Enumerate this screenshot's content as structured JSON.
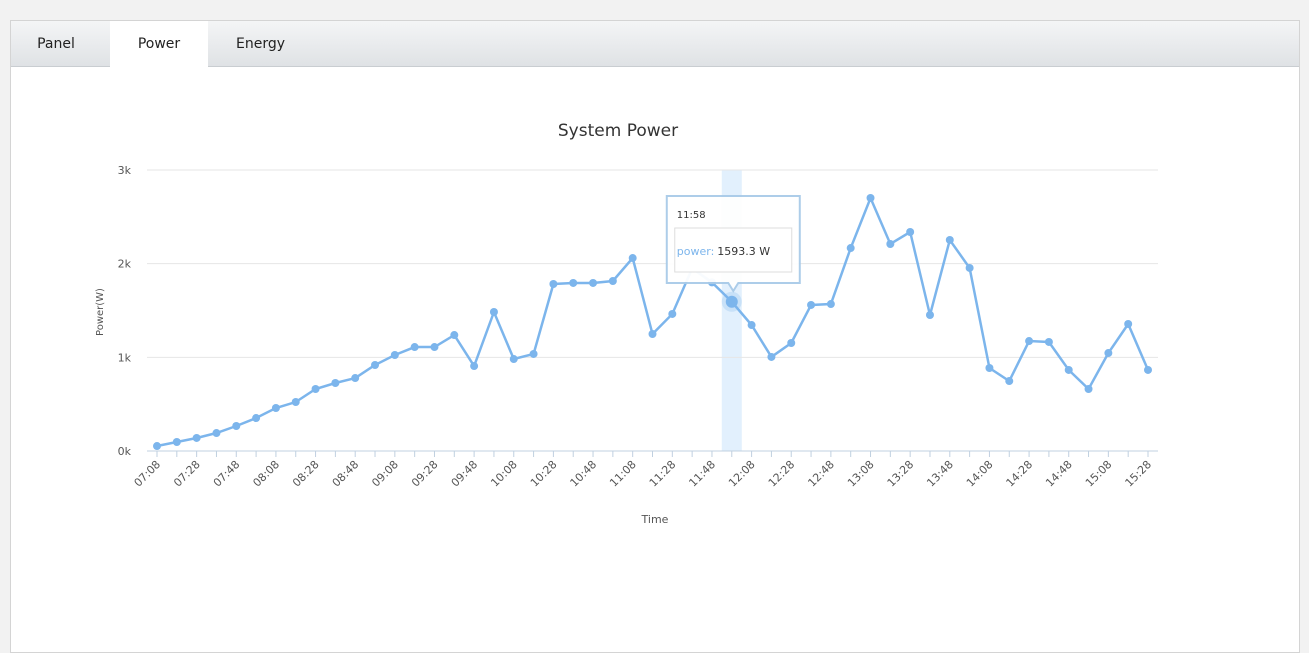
{
  "tabs": [
    "Panel",
    "Power",
    "Energy"
  ],
  "active_tab": 1,
  "chart_data": {
    "type": "line",
    "title": "System Power",
    "x_label": "Time",
    "y_label": "Power(W)",
    "categories": [
      "07:08",
      null,
      "07:28",
      null,
      "07:48",
      null,
      "08:08",
      null,
      "08:28",
      null,
      "08:48",
      null,
      "09:08",
      null,
      "09:28",
      null,
      "09:48",
      null,
      "10:08",
      null,
      "10:28",
      null,
      "10:48",
      null,
      "11:08",
      null,
      "11:28",
      null,
      "11:48",
      null,
      "12:08",
      null,
      "12:28",
      null,
      "12:48",
      null,
      "13:08",
      null,
      "13:28",
      null,
      "13:48",
      null,
      "14:08",
      null,
      "14:28",
      null,
      "14:48",
      null,
      "15:08",
      null,
      "15:28"
    ],
    "series": [
      {
        "name": "power",
        "color": "#7cb5ec",
        "values": [
          53,
          96,
          139,
          192,
          267,
          352,
          459,
          523,
          662,
          726,
          779,
          918,
          1025,
          1110,
          1110,
          1238,
          907,
          1484,
          982,
          1036,
          1783,
          1794,
          1794,
          1815,
          2060,
          1249,
          1463,
          1950,
          1800,
          1593.3,
          1345,
          1004,
          1153,
          1559,
          1569,
          2167,
          2701,
          2210,
          2338,
          1452,
          2253,
          1954,
          886,
          747,
          1174,
          1164,
          865,
          662,
          1046,
          1356,
          865
        ]
      }
    ],
    "ylim": [
      0,
      3000
    ],
    "yticks": [
      {
        "value": 0,
        "label": "0k"
      },
      {
        "value": 1000,
        "label": "1k"
      },
      {
        "value": 2000,
        "label": "2k"
      },
      {
        "value": 3000,
        "label": "3k"
      }
    ],
    "grid": true,
    "tooltip": {
      "index": 29,
      "title": "11:58",
      "series_label": "power:",
      "value_label": "1593.3 W"
    }
  }
}
